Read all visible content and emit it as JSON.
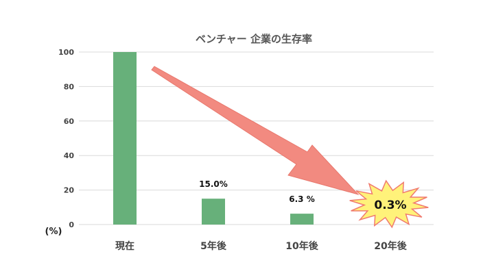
{
  "chart_data": {
    "type": "bar",
    "title": "ベンチャー 企業の生存率",
    "ylabel": "(%)",
    "xlabel": "",
    "ylim": [
      0,
      100
    ],
    "yticks": [
      0,
      20,
      40,
      60,
      80,
      100
    ],
    "grid": true,
    "categories": [
      "現在",
      "5年後",
      "10年後",
      "20年後"
    ],
    "values": [
      100,
      15.0,
      6.3,
      0.3
    ],
    "data_labels": [
      "",
      "15.0%",
      "6.3 %",
      "0.3%"
    ],
    "colors": {
      "bar": "#67b07a",
      "arrow": "#f28a80",
      "burst_fill": "#fff27a",
      "burst_stroke": "#f07a6e",
      "grid": "#d9d9d9"
    }
  }
}
